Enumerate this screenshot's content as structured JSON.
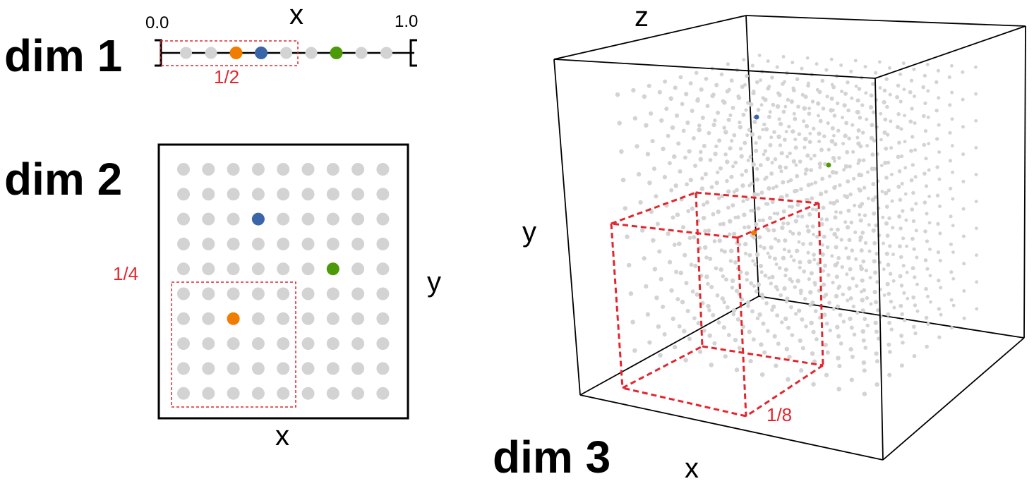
{
  "colors": {
    "grid_point": "#d3d3d3",
    "highlight_box": "#e3262d",
    "point_orange": "#f07c00",
    "point_blue": "#3a65a8",
    "point_green": "#4c9a08",
    "axis": "#000000"
  },
  "dim1": {
    "label": "dim 1",
    "axis_label": "x",
    "tick_min": "0.0",
    "tick_max": "1.0",
    "fraction_label": "1/2",
    "grid_positions": [
      0.1,
      0.2,
      0.3,
      0.4,
      0.5,
      0.6,
      0.7,
      0.8,
      0.9
    ],
    "colored_points": [
      {
        "color": "orange",
        "x": 0.3
      },
      {
        "color": "blue",
        "x": 0.4
      },
      {
        "color": "green",
        "x": 0.7
      }
    ],
    "box_extent": [
      0.0,
      0.55
    ]
  },
  "dim2": {
    "label": "dim 2",
    "x_label": "x",
    "y_label": "y",
    "fraction_label": "1/4",
    "grid_cols": 9,
    "grid_rows": 10,
    "colored_points": [
      {
        "color": "blue",
        "col": 4,
        "row": 3
      },
      {
        "color": "green",
        "col": 7,
        "row": 5
      },
      {
        "color": "orange",
        "col": 3,
        "row": 7
      }
    ]
  },
  "dim3": {
    "label": "dim 3",
    "x_label": "x",
    "y_label": "y",
    "z_label": "z",
    "fraction_label": "1/8"
  }
}
